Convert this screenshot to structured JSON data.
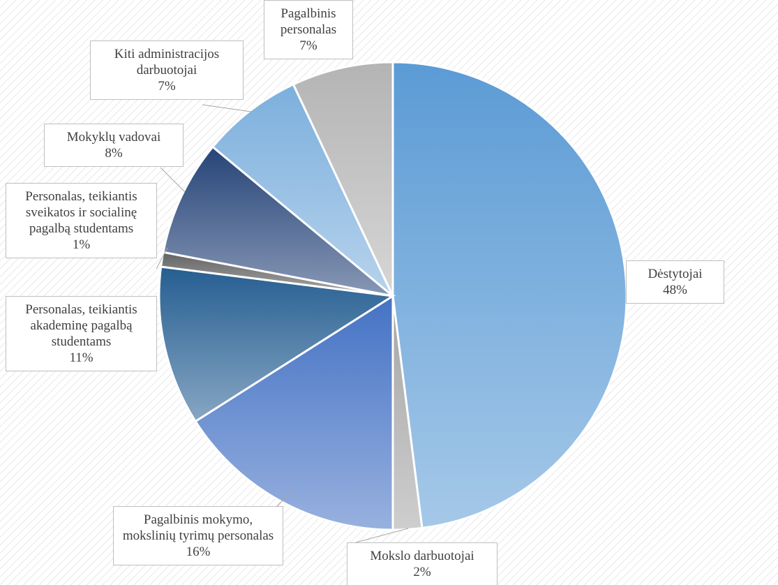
{
  "chart_data": {
    "type": "pie",
    "categories": [
      "Dėstytojai",
      "Mokslo darbuotojai",
      "Pagalbinis mokymo, mokslinių tyrimų personalas",
      "Personalas, teikiantis akademinę pagalbą studentams",
      "Personalas, teikiantis sveikatos ir socialinę pagalbą studentams",
      "Mokyklų vadovai",
      "Kiti administracijos darbuotojai",
      "Pagalbinis personalas"
    ],
    "values": [
      48,
      2,
      16,
      11,
      1,
      8,
      7,
      7
    ],
    "value_labels": [
      "48%",
      "2%",
      "16%",
      "11%",
      "1%",
      "8%",
      "7%",
      "7%"
    ],
    "colors": [
      "#5b9bd5",
      "#a5a5a5",
      "#4472c4",
      "#255e91",
      "#636363",
      "#264478",
      "#7cafdd",
      "#b4b4b4"
    ]
  }
}
